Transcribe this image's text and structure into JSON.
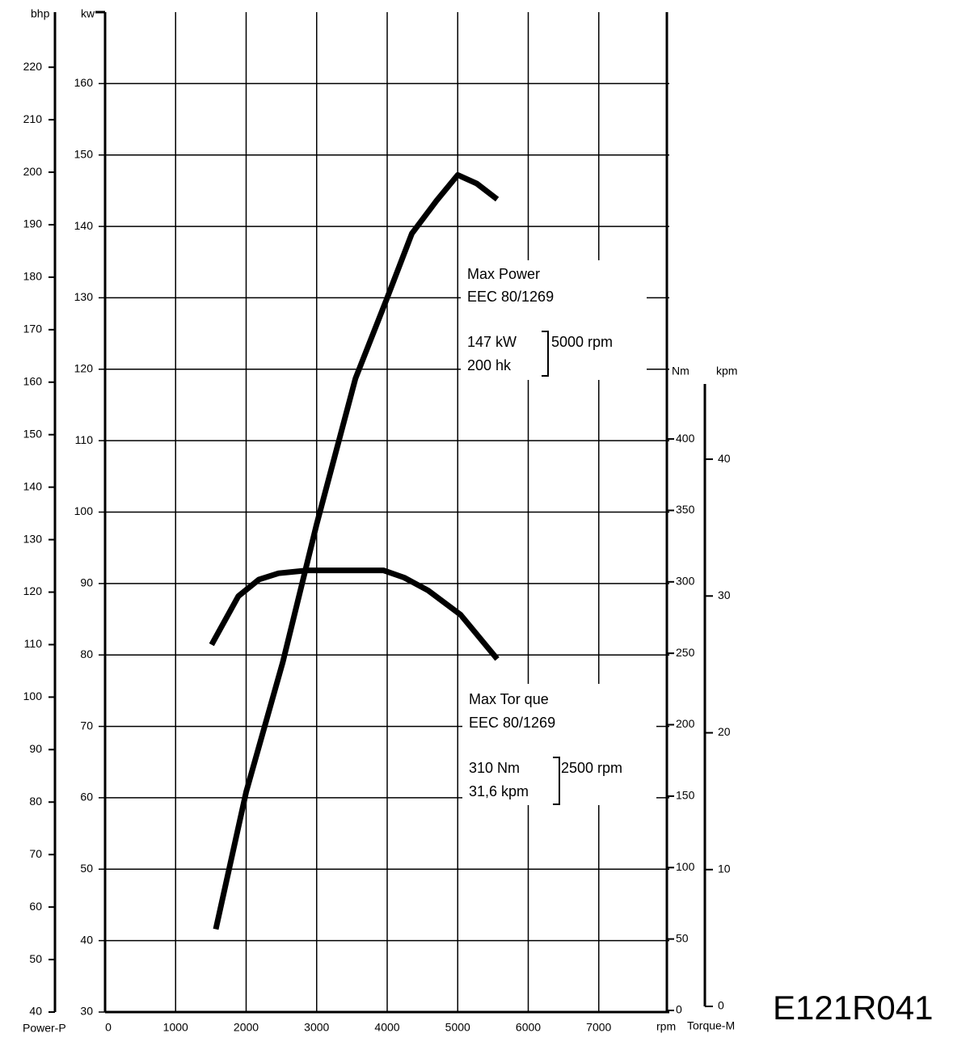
{
  "chart_data": {
    "type": "line",
    "x_label": "rpm",
    "xlim": [
      0,
      8000
    ],
    "xticks": [
      0,
      1000,
      2000,
      3000,
      4000,
      5000,
      6000,
      7000
    ],
    "y_label": "kw",
    "ylim": [
      30,
      170
    ],
    "yticks": [
      30,
      40,
      50,
      60,
      70,
      80,
      90,
      100,
      110,
      120,
      130,
      140,
      150,
      160
    ],
    "bhp_axis": {
      "label": "bhp",
      "lim": [
        40,
        230.5
      ],
      "ticks": [
        40,
        50,
        60,
        70,
        80,
        90,
        100,
        110,
        120,
        130,
        140,
        150,
        160,
        170,
        180,
        190,
        200,
        210,
        220
      ]
    },
    "y2_label": "Nm",
    "y2lim": [
      0,
      447
    ],
    "y2ticks": [
      0,
      50,
      100,
      150,
      200,
      250,
      300,
      350,
      400
    ],
    "kpm_axis": {
      "label": "kpm",
      "lim": [
        0,
        45.5
      ],
      "ticks": [
        0,
        10,
        20,
        30,
        40
      ]
    },
    "grid": true,
    "series": [
      {
        "name": "Power-P",
        "color": "#000000",
        "x": [
          1570,
          2000,
          2520,
          3000,
          3550,
          4000,
          4350,
          4700,
          5000,
          5270,
          5560
        ],
        "values": [
          41.6,
          60.8,
          79,
          98.3,
          118.7,
          130,
          139,
          143.6,
          147.2,
          146,
          143.8
        ]
      },
      {
        "name": "Torque-M",
        "color": "#000000",
        "axis": "y2",
        "x": [
          1510,
          1890,
          2180,
          2460,
          2870,
          3950,
          4240,
          4580,
          5040,
          5560
        ],
        "values": [
          256,
          290,
          301.6,
          306,
          308,
          308,
          303,
          294,
          277,
          246
        ]
      }
    ],
    "annotations": [
      {
        "title": "Max Power",
        "standard": "EEC 80/1269",
        "lines": [
          "147 kW",
          "200 hk"
        ],
        "speed": "5000 rpm"
      },
      {
        "title": "Max  Tor que",
        "standard": "EEC 80/1269",
        "lines": [
          "310 Nm",
          "31,6 kpm"
        ],
        "speed": "2500 rpm"
      }
    ],
    "figure_code": "E121R041"
  }
}
